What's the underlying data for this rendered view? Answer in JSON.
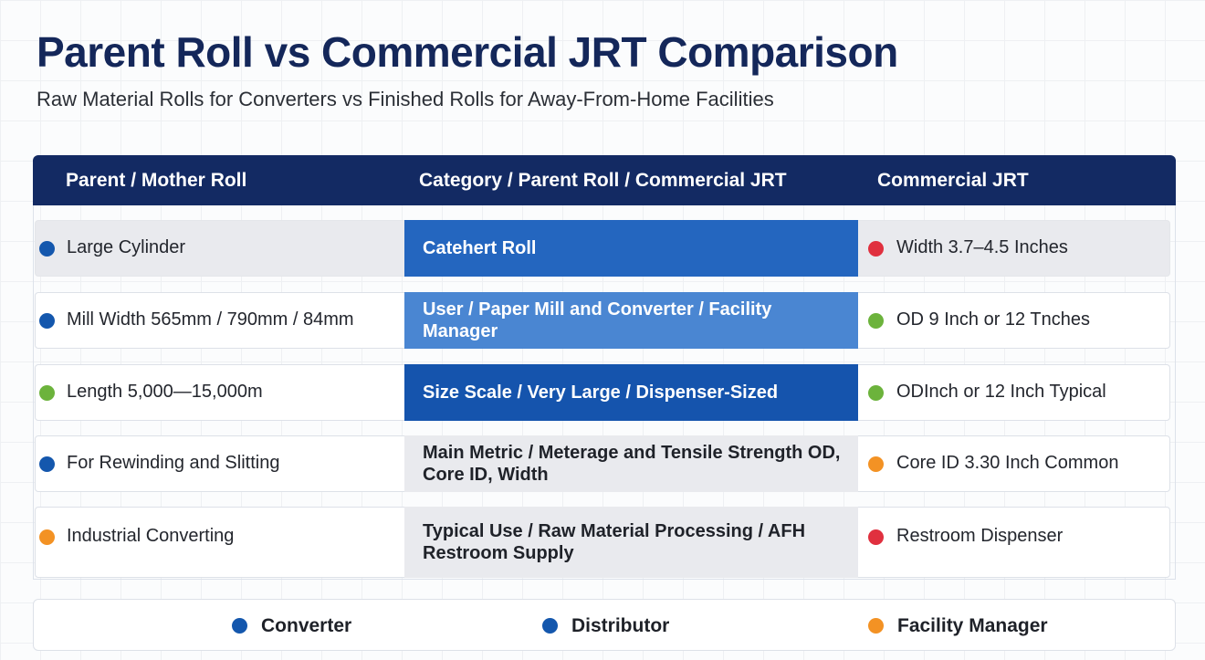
{
  "title": "Parent Roll vs Commercial JRT Comparison",
  "subtitle": "Raw Material Rolls for Converters vs Finished Rolls for Away-From-Home Facilities",
  "headers": {
    "left": "Parent / Mother Roll",
    "middle": "Category / Parent Roll / Commercial JRT",
    "right": "Commercial JRT"
  },
  "colors": {
    "navy": "#132a63",
    "blue_dark": "#1659b1",
    "blue_mid": "#2466bf",
    "blue_light": "#4a86d2",
    "blue_deep": "#1554ad",
    "dot_blue": "#1457ad",
    "dot_green": "#6cb33c",
    "dot_orange": "#f39224",
    "dot_red": "#e0303f"
  },
  "rows": [
    {
      "left": {
        "text": "Large Cylinder",
        "dot": "blue"
      },
      "middle": {
        "text": "Catehert Roll",
        "style": "blue"
      },
      "right": {
        "text": "Width 3.7–4.5 Inches",
        "dot": "red"
      }
    },
    {
      "left": {
        "text": "Mill Width 565mm / 790mm / 84mm",
        "dot": "blue"
      },
      "middle": {
        "text": "User / Paper Mill and Converter / Facility Manager",
        "style": "blue-light"
      },
      "right": {
        "text": "OD 9 Inch or 12 Tnches",
        "dot": "green"
      }
    },
    {
      "left": {
        "text": "Length 5,000—15,000m",
        "dot": "green"
      },
      "middle": {
        "text": "Size Scale / Very Large / Dispenser-Sized",
        "style": "blue-deep"
      },
      "right": {
        "text": "ODInch or 12 Inch Typical",
        "dot": "green"
      }
    },
    {
      "left": {
        "text": "For Rewinding and Slitting",
        "dot": "blue"
      },
      "middle": {
        "text": "Main Metric / Meterage and Tensile Strength OD, Core ID, Width",
        "style": "plain"
      },
      "right": {
        "text": "Core ID 3.30 Inch Common",
        "dot": "orange"
      }
    },
    {
      "left": {
        "text": "Industrial Converting",
        "dot": "orange"
      },
      "middle": {
        "text": "Typical Use / Raw Material Processing / AFH Restroom Supply",
        "style": "plain"
      },
      "right": {
        "text": "Restroom Dispenser",
        "dot": "red"
      }
    }
  ],
  "legend": [
    {
      "label": "Converter",
      "dot": "blue"
    },
    {
      "label": "Distributor",
      "dot": "blue"
    },
    {
      "label": "Facility Manager",
      "dot": "orange"
    }
  ]
}
